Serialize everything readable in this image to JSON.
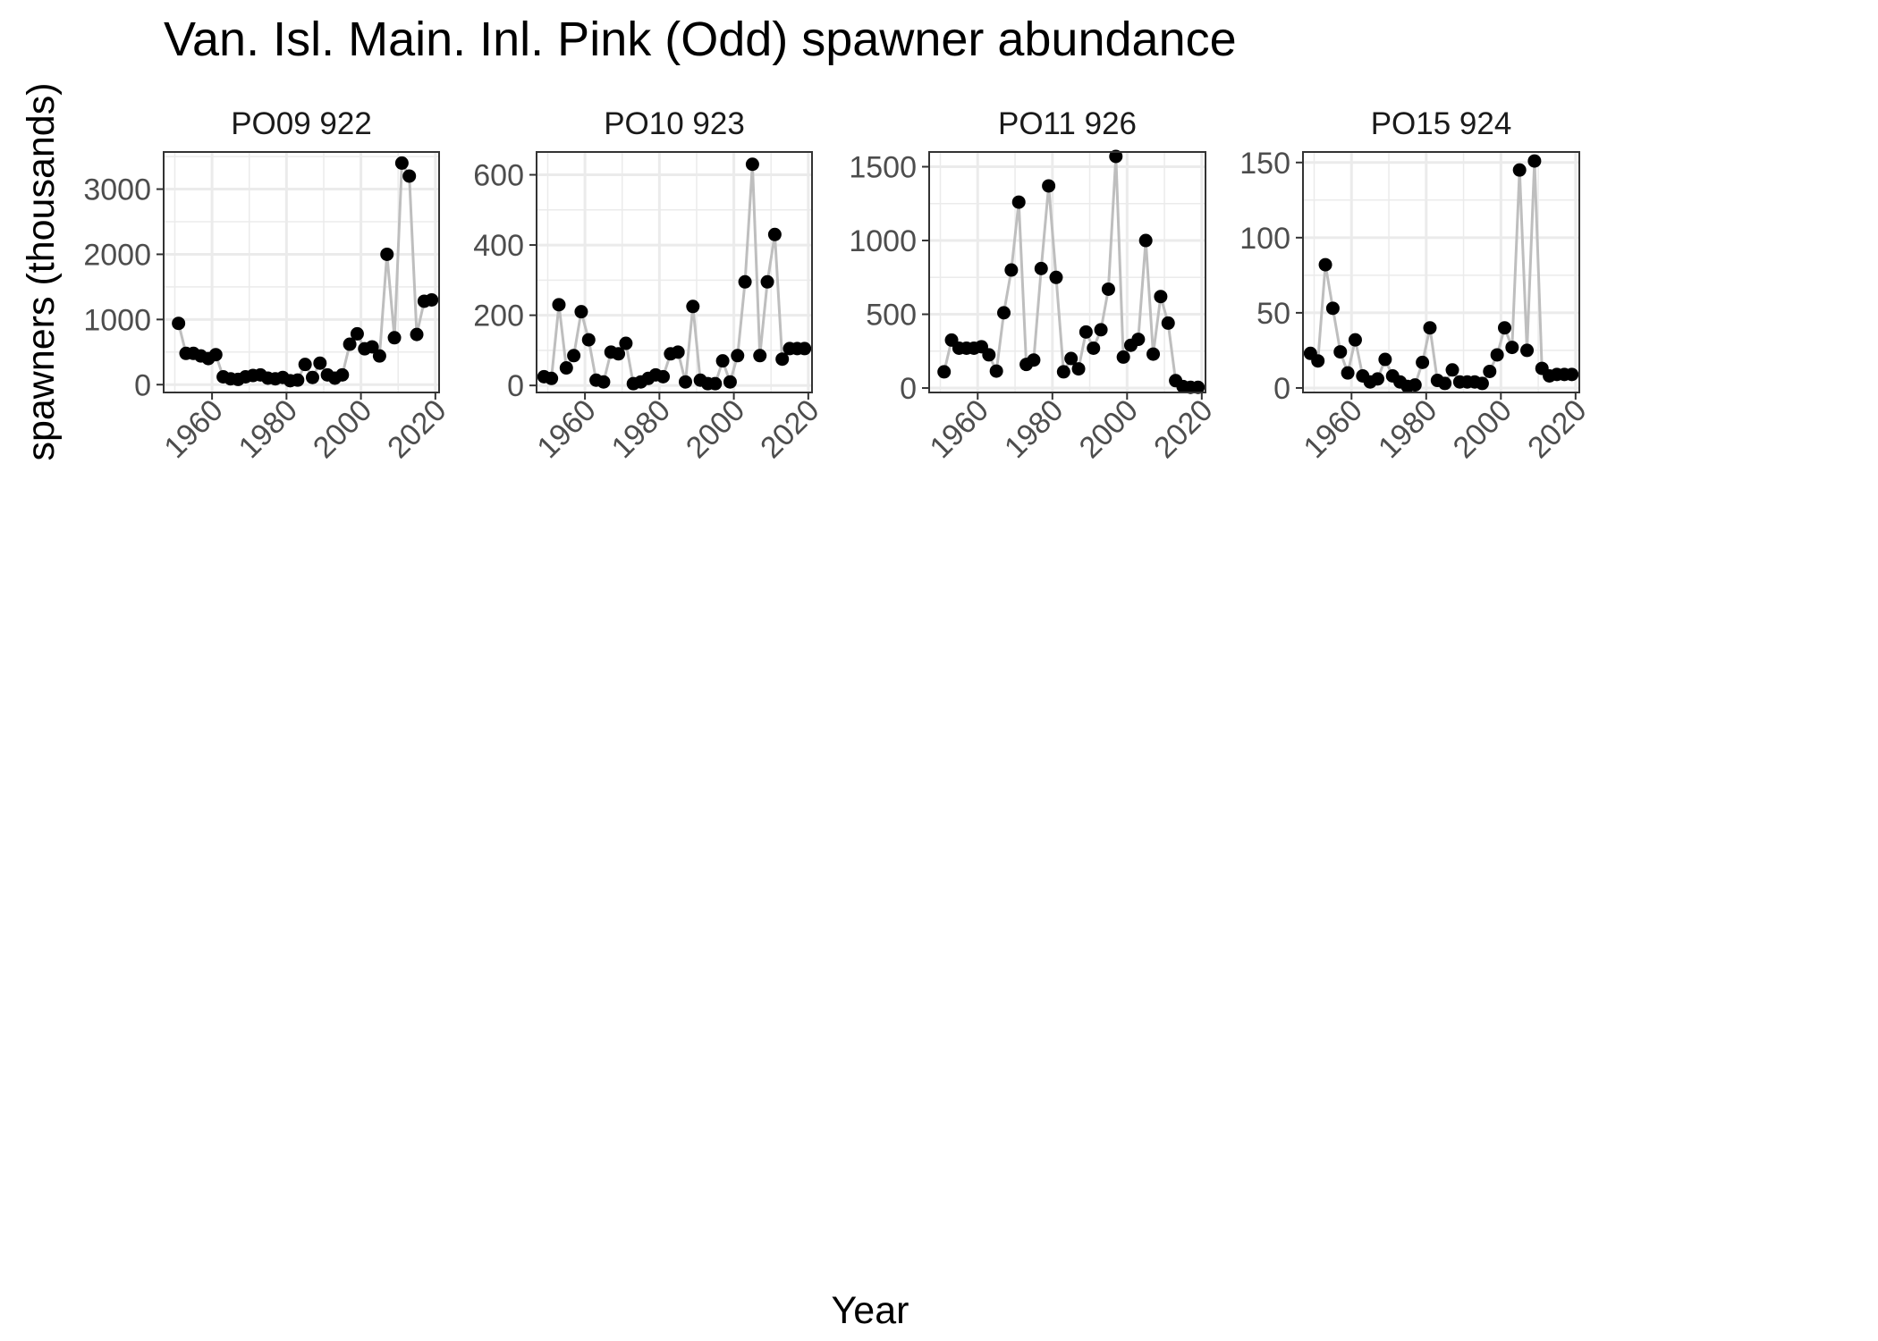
{
  "chart_data": {
    "type": "line",
    "title": "Van. Isl. Main. Inl. Pink (Odd) spawner abundance",
    "xlabel": "Year",
    "ylabel": "spawners (thousands)",
    "grid": true,
    "colors": {
      "line": "#bebebe",
      "point": "#000000",
      "grid": "#ebebeb",
      "border": "#333333"
    },
    "x_ticks": [
      1960,
      1980,
      2000,
      2020
    ],
    "xlim": [
      1947,
      2021
    ],
    "panels": [
      {
        "name": "PO09 922",
        "ylim": [
          -120,
          3570
        ],
        "y_ticks": [
          0,
          1000,
          2000,
          3000
        ],
        "x": [
          1951,
          1953,
          1955,
          1957,
          1959,
          1961,
          1963,
          1965,
          1967,
          1969,
          1971,
          1973,
          1975,
          1977,
          1979,
          1981,
          1983,
          1985,
          1987,
          1989,
          1991,
          1993,
          1995,
          1997,
          1999,
          2001,
          2003,
          2005,
          2007,
          2009,
          2011,
          2013,
          2015,
          2017,
          2019
        ],
        "y": [
          940,
          480,
          480,
          440,
          400,
          460,
          120,
          90,
          80,
          120,
          140,
          150,
          100,
          90,
          110,
          60,
          70,
          310,
          110,
          330,
          150,
          100,
          150,
          620,
          780,
          550,
          580,
          440,
          2000,
          720,
          3400,
          3200,
          770,
          1280,
          1300
        ]
      },
      {
        "name": "PO10 923",
        "ylim": [
          -20,
          665
        ],
        "y_ticks": [
          0,
          200,
          400,
          600
        ],
        "x": [
          1949,
          1951,
          1953,
          1955,
          1957,
          1959,
          1961,
          1963,
          1965,
          1967,
          1969,
          1971,
          1973,
          1975,
          1977,
          1979,
          1981,
          1983,
          1985,
          1987,
          1989,
          1991,
          1993,
          1995,
          1997,
          1999,
          2001,
          2003,
          2005,
          2007,
          2009,
          2011,
          2013,
          2015,
          2017,
          2019
        ],
        "y": [
          25,
          20,
          230,
          50,
          85,
          210,
          130,
          15,
          10,
          95,
          90,
          120,
          5,
          10,
          20,
          30,
          25,
          90,
          95,
          10,
          225,
          15,
          5,
          5,
          70,
          10,
          85,
          295,
          630,
          85,
          295,
          430,
          75,
          105,
          105,
          105
        ]
      },
      {
        "name": "PO11 926",
        "ylim": [
          -30,
          1600
        ],
        "y_ticks": [
          0,
          500,
          1000,
          1500
        ],
        "x": [
          1951,
          1953,
          1955,
          1957,
          1959,
          1961,
          1963,
          1965,
          1967,
          1969,
          1971,
          1973,
          1975,
          1977,
          1979,
          1981,
          1983,
          1985,
          1987,
          1989,
          1991,
          1993,
          1995,
          1997,
          1999,
          2001,
          2003,
          2005,
          2007,
          2009,
          2011,
          2013,
          2015,
          2017,
          2019
        ],
        "y": [
          110,
          325,
          270,
          270,
          270,
          280,
          225,
          115,
          510,
          800,
          1260,
          160,
          190,
          810,
          1370,
          750,
          110,
          200,
          130,
          380,
          270,
          395,
          670,
          1570,
          210,
          290,
          330,
          1000,
          230,
          620,
          440,
          50,
          10,
          5,
          5
        ]
      },
      {
        "name": "PO15 924",
        "ylim": [
          -3,
          157
        ],
        "y_ticks": [
          0,
          50,
          100,
          150
        ],
        "x": [
          1949,
          1951,
          1953,
          1955,
          1957,
          1959,
          1961,
          1963,
          1965,
          1967,
          1969,
          1971,
          1973,
          1975,
          1977,
          1979,
          1981,
          1983,
          1985,
          1987,
          1989,
          1991,
          1993,
          1995,
          1997,
          1999,
          2001,
          2003,
          2005,
          2007,
          2009,
          2011,
          2013,
          2015,
          2017,
          2019
        ],
        "y": [
          23,
          18,
          82,
          53,
          24,
          10,
          32,
          8,
          4,
          6,
          19,
          8,
          4,
          1,
          2,
          17,
          40,
          5,
          3,
          12,
          4,
          4,
          4,
          3,
          11,
          22,
          40,
          27,
          145,
          25,
          151,
          13,
          8,
          9,
          9,
          9
        ]
      }
    ]
  }
}
